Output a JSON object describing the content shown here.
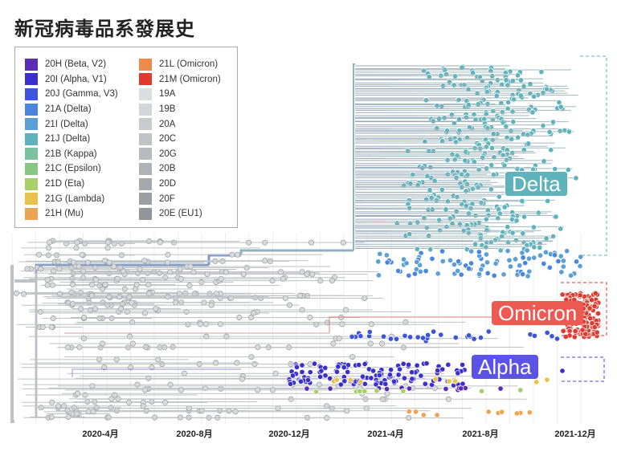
{
  "title": "新冠病毒品系發展史",
  "chart_data": {
    "type": "phylogenetic-tree",
    "title": "新冠病毒品系發展史",
    "x_axis": {
      "ticks": [
        "2020-4月",
        "2020-8月",
        "2020-12月",
        "2021-4月",
        "2021-8月",
        "2021-12月"
      ]
    },
    "legend": {
      "placement": "top-left",
      "items": [
        {
          "label": "20H (Beta, V2)",
          "color": "#5b2db5"
        },
        {
          "label": "20I (Alpha, V1)",
          "color": "#3b2fd0"
        },
        {
          "label": "20J (Gamma, V3)",
          "color": "#3d55db"
        },
        {
          "label": "21A (Delta)",
          "color": "#4a86e0"
        },
        {
          "label": "21I (Delta)",
          "color": "#5aa0d6"
        },
        {
          "label": "21J (Delta)",
          "color": "#5fb3bd"
        },
        {
          "label": "21B (Kappa)",
          "color": "#78c2a0"
        },
        {
          "label": "21C (Epsilon)",
          "color": "#86c783"
        },
        {
          "label": "21D (Eta)",
          "color": "#a9cf67"
        },
        {
          "label": "21G (Lambda)",
          "color": "#e9c24c"
        },
        {
          "label": "21H (Mu)",
          "color": "#eba552"
        },
        {
          "label": "21L (Omicron)",
          "color": "#ee8a4a"
        },
        {
          "label": "21M (Omicron)",
          "color": "#e0392f"
        },
        {
          "label": "19A",
          "color": "#dcdde0"
        },
        {
          "label": "19B",
          "color": "#d3d5d8"
        },
        {
          "label": "20A",
          "color": "#c9cbcf"
        },
        {
          "label": "20C",
          "color": "#c0c2c6"
        },
        {
          "label": "20G",
          "color": "#b8babe"
        },
        {
          "label": "20B",
          "color": "#b0b2b7"
        },
        {
          "label": "20D",
          "color": "#a6a8ad"
        },
        {
          "label": "20F",
          "color": "#9c9ea4"
        },
        {
          "label": "20E (EU1)",
          "color": "#93959b"
        }
      ]
    },
    "annotations": [
      {
        "label": "Delta",
        "color": "#5fb3bd"
      },
      {
        "label": "Omicron",
        "color": "#e0392f"
      },
      {
        "label": "Alpha",
        "color": "#4b3fd8"
      }
    ]
  }
}
